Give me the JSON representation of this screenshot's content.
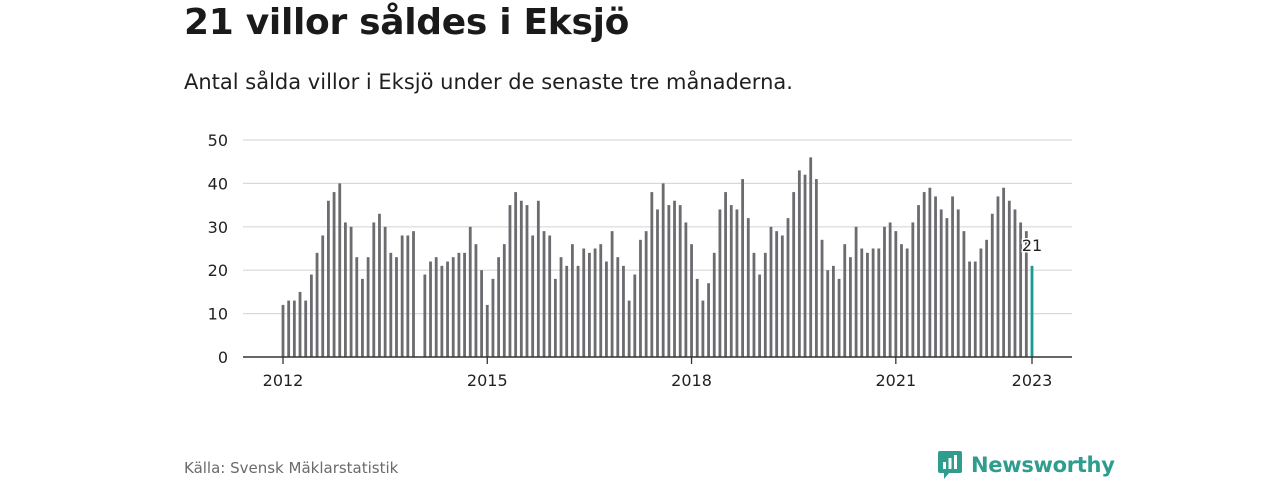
{
  "header": {
    "title": "21 villor såldes i Eksjö",
    "subtitle": "Antal sålda villor i Eksjö under de senaste tre månaderna."
  },
  "footer": {
    "source": "Källa: Svensk Mäklarstatistik",
    "brand": "Newsworthy"
  },
  "colors": {
    "bar": "#6b6b70",
    "highlight": "#1a9a96",
    "grid": "#d9d9d9",
    "axis": "#333333",
    "brand": "#2e9d8e"
  },
  "chart_data": {
    "type": "bar",
    "x_start": "2012-01",
    "x_end": "2023-01",
    "interval": "month",
    "ylim": [
      0,
      50
    ],
    "yticks": [
      0,
      10,
      20,
      30,
      40,
      50
    ],
    "xticks": [
      {
        "label": "2012",
        "at": "2012-01"
      },
      {
        "label": "2015",
        "at": "2015-01"
      },
      {
        "label": "2018",
        "at": "2018-01"
      },
      {
        "label": "2021",
        "at": "2021-01"
      },
      {
        "label": "2023",
        "at": "2023-01"
      }
    ],
    "values": [
      12,
      13,
      13,
      15,
      13,
      19,
      24,
      28,
      36,
      38,
      40,
      31,
      30,
      23,
      18,
      23,
      31,
      33,
      30,
      24,
      23,
      28,
      28,
      29,
      null,
      19,
      22,
      23,
      21,
      22,
      23,
      24,
      24,
      30,
      26,
      20,
      12,
      18,
      23,
      26,
      35,
      38,
      36,
      35,
      28,
      36,
      29,
      28,
      18,
      23,
      21,
      26,
      21,
      25,
      24,
      25,
      26,
      22,
      29,
      23,
      21,
      13,
      19,
      27,
      29,
      38,
      34,
      40,
      35,
      36,
      35,
      31,
      26,
      18,
      13,
      17,
      24,
      34,
      38,
      35,
      34,
      41,
      32,
      24,
      19,
      24,
      30,
      29,
      28,
      32,
      38,
      43,
      42,
      46,
      41,
      27,
      20,
      21,
      18,
      26,
      23,
      30,
      25,
      24,
      25,
      25,
      30,
      31,
      29,
      26,
      25,
      31,
      35,
      38,
      39,
      37,
      34,
      32,
      37,
      34,
      29,
      22,
      22,
      25,
      27,
      33,
      37,
      39,
      36,
      34,
      31,
      29,
      21
    ],
    "highlight_label": "21",
    "grid": true
  }
}
